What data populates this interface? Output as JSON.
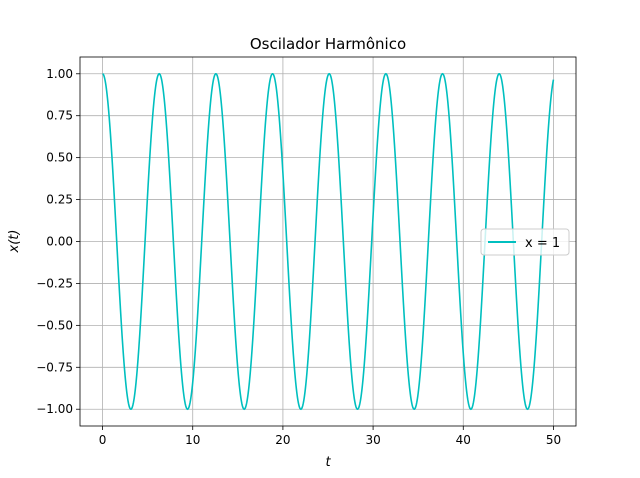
{
  "chart_data": {
    "type": "line",
    "title": "Oscilador Harmônico",
    "xlabel": "t",
    "ylabel": "x(t)",
    "xlim": [
      -2.5,
      52.5
    ],
    "ylim": [
      -1.1,
      1.1
    ],
    "x_ticks": [
      0,
      10,
      20,
      30,
      40,
      50
    ],
    "x_tick_labels": [
      "0",
      "10",
      "20",
      "30",
      "40",
      "50"
    ],
    "y_ticks": [
      -1.0,
      -0.75,
      -0.5,
      -0.25,
      0.0,
      0.25,
      0.5,
      0.75,
      1.0
    ],
    "y_tick_labels": [
      "−1.00",
      "−0.75",
      "−0.50",
      "−0.25",
      "0.00",
      "0.25",
      "0.50",
      "0.75",
      "1.00"
    ],
    "grid": true,
    "legend_position": "center-right",
    "series": [
      {
        "name": "x = 1",
        "color": "#00bfbf",
        "function": "cos",
        "amplitude": 1,
        "omega": 1,
        "x_range": [
          0,
          50
        ]
      }
    ]
  }
}
